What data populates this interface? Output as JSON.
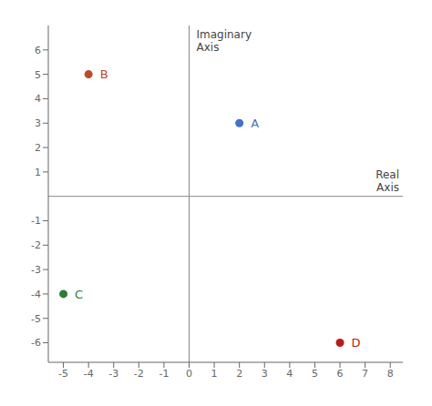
{
  "chart_data": {
    "type": "scatter",
    "xlabel": "Real\nAxis",
    "ylabel": "Imaginary\nAxis",
    "points": [
      {
        "label": "A",
        "x": 2,
        "y": 3,
        "color": "#4472C4"
      },
      {
        "label": "B",
        "x": -4,
        "y": 5,
        "color": "#C0482A"
      },
      {
        "label": "C",
        "x": -5,
        "y": -4,
        "color": "#2E7D32"
      },
      {
        "label": "D",
        "x": 6,
        "y": -6,
        "color": "#B71C1C"
      }
    ],
    "xlim": [
      -5.6,
      8.5
    ],
    "ylim": [
      -6.8,
      7.0
    ],
    "xticks": [
      -5,
      -4,
      -3,
      -2,
      -1,
      0,
      1,
      2,
      3,
      4,
      5,
      6,
      7,
      8
    ],
    "yticks": [
      -6,
      -5,
      -4,
      -3,
      -2,
      -1,
      1,
      2,
      3,
      4,
      5,
      6
    ],
    "grid": false
  }
}
